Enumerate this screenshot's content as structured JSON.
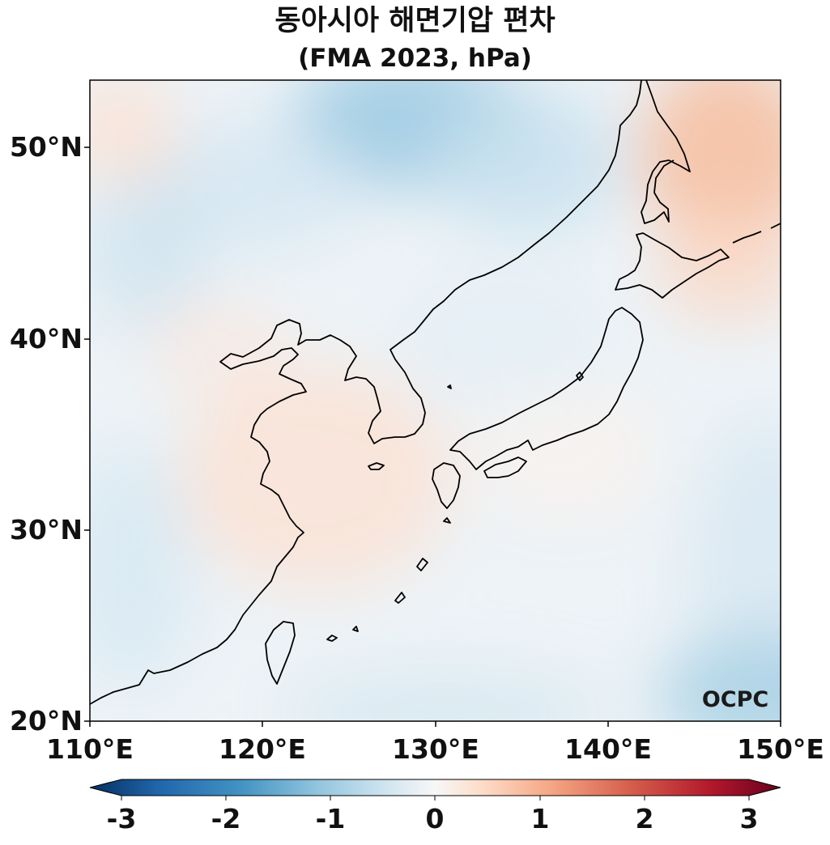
{
  "title": {
    "line1": "동아시아 해면기압 편차",
    "line2": "(FMA 2023, hPa)"
  },
  "map": {
    "lon_range": [
      110,
      150
    ],
    "lat_range": [
      20,
      53.5
    ],
    "lat_ticks": [
      "20°N",
      "30°N",
      "40°N",
      "50°N"
    ],
    "lon_ticks": [
      "110°E",
      "120°E",
      "130°E",
      "140°E",
      "150°E"
    ],
    "logo": "OCPC"
  },
  "colorbar": {
    "ticks": [
      "-3",
      "-2",
      "-1",
      "0",
      "1",
      "2",
      "3"
    ],
    "range": [
      -3,
      3
    ],
    "colors": [
      "#053061",
      "#2166ac",
      "#4393c3",
      "#92c5de",
      "#d1e5f0",
      "#f7f7f7",
      "#fddbc7",
      "#f4a582",
      "#d6604d",
      "#b2182b",
      "#67001f"
    ]
  }
}
